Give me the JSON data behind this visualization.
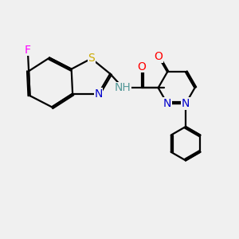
{
  "background_color": "#f0f0f0",
  "atom_colors": {
    "C": "#000000",
    "N": "#0000cc",
    "O": "#ff0000",
    "S": "#ccaa00",
    "F": "#ff00ff",
    "H": "#559999"
  },
  "bond_color": "#000000",
  "line_width": 1.6,
  "font_size": 10,
  "fig_size": [
    3.0,
    3.0
  ],
  "dpi": 100,
  "xlim": [
    0,
    10
  ],
  "ylim": [
    0,
    10
  ]
}
